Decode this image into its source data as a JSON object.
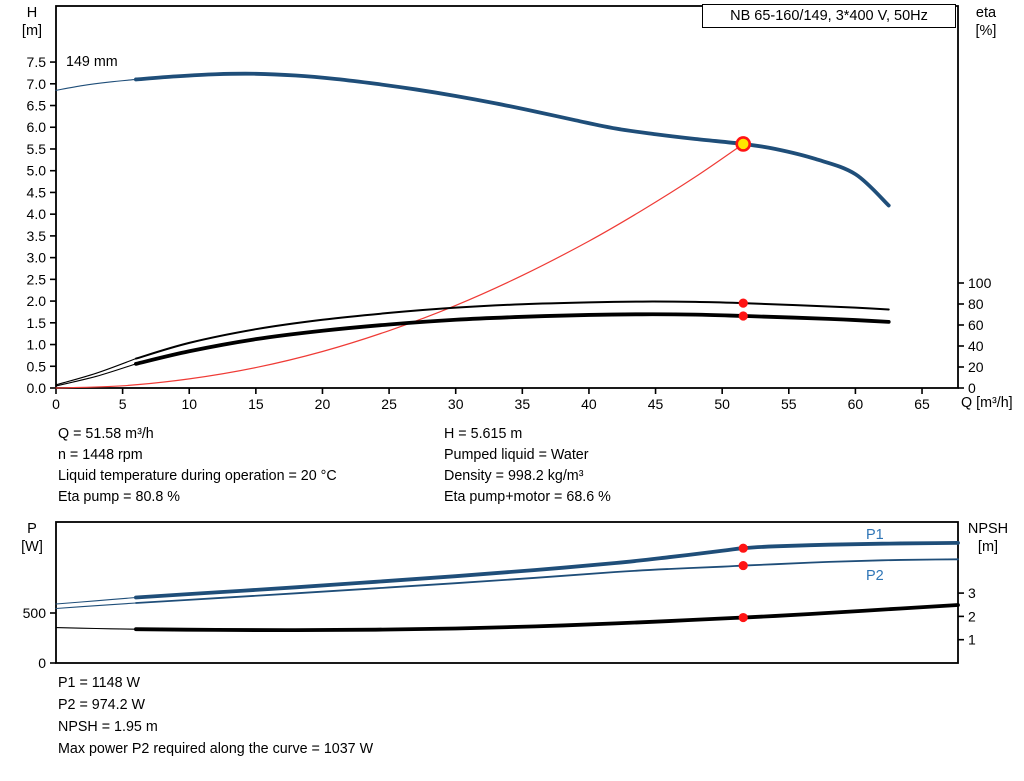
{
  "chart_data": [
    {
      "type": "line",
      "title": "NB 65-160/149, 3*400 V, 50Hz",
      "curve_label": "149 mm",
      "left_axis_title": [
        "H",
        "[m]"
      ],
      "right_axis_title": [
        "eta",
        "[%]"
      ],
      "x_axis_title": "Q [m³/h]",
      "axes": {
        "q": {
          "min": 0,
          "max": 67.7
        },
        "h": {
          "min": 0,
          "max": 8.79
        },
        "eta": {
          "min": 0,
          "max": 363.8
        }
      },
      "ticks": [
        {
          "side": "left",
          "axis": "h",
          "values": [
            0,
            0.5,
            1,
            1.5,
            2,
            2.5,
            3,
            3.5,
            4,
            4.5,
            5,
            5.5,
            6,
            6.5,
            7,
            7.5
          ],
          "labels": [
            "0.0",
            "0.5",
            "1.0",
            "1.5",
            "2.0",
            "2.5",
            "3.0",
            "3.5",
            "4.0",
            "4.5",
            "5.0",
            "5.5",
            "6.0",
            "6.5",
            "7.0",
            "7.5"
          ]
        },
        {
          "side": "right",
          "axis": "eta",
          "values": [
            0,
            20,
            40,
            60,
            80,
            100
          ],
          "labels": [
            "0",
            "20",
            "40",
            "60",
            "80",
            "100"
          ]
        },
        {
          "side": "bottom",
          "axis": "q",
          "values": [
            0,
            5,
            10,
            15,
            20,
            25,
            30,
            35,
            40,
            45,
            50,
            55,
            60,
            65
          ],
          "labels": [
            "0",
            "5",
            "10",
            "15",
            "20",
            "25",
            "30",
            "35",
            "40",
            "45",
            "50",
            "55",
            "60",
            "65"
          ]
        }
      ],
      "series": [
        {
          "name": "head-min-flow",
          "axis": "h",
          "color": "#1f4e79",
          "width": 1.1,
          "points": [
            [
              0,
              6.85
            ],
            [
              2,
              6.96
            ],
            [
              4,
              7.04
            ],
            [
              6,
              7.1
            ]
          ]
        },
        {
          "name": "head-149mm",
          "axis": "h",
          "color": "#1f4e79",
          "width": 3.8,
          "points": [
            [
              6,
              7.1
            ],
            [
              9,
              7.17
            ],
            [
              12,
              7.22
            ],
            [
              15,
              7.23
            ],
            [
              18,
              7.19
            ],
            [
              21,
              7.11
            ],
            [
              24,
              7.0
            ],
            [
              27,
              6.87
            ],
            [
              30,
              6.72
            ],
            [
              33,
              6.55
            ],
            [
              36,
              6.36
            ],
            [
              39,
              6.16
            ],
            [
              42,
              5.97
            ],
            [
              45,
              5.84
            ],
            [
              48,
              5.73
            ],
            [
              51.58,
              5.615
            ],
            [
              54,
              5.5
            ],
            [
              57,
              5.27
            ],
            [
              60,
              4.92
            ],
            [
              62.5,
              4.2
            ]
          ]
        },
        {
          "name": "system-curve",
          "axis": "h",
          "color": "#ef3b36",
          "width": 1.2,
          "points": [
            [
              0,
              0
            ],
            [
              5,
              0.05
            ],
            [
              10,
              0.21
            ],
            [
              15,
              0.47
            ],
            [
              20,
              0.84
            ],
            [
              25,
              1.32
            ],
            [
              30,
              1.9
            ],
            [
              35,
              2.59
            ],
            [
              40,
              3.38
            ],
            [
              44,
              4.09
            ],
            [
              48,
              4.86
            ],
            [
              51.58,
              5.615
            ]
          ]
        },
        {
          "name": "eta-pump-lead",
          "axis": "eta",
          "color": "#000000",
          "width": 1.1,
          "points": [
            [
              0,
              3
            ],
            [
              3,
              14
            ],
            [
              6,
              28
            ]
          ]
        },
        {
          "name": "eta-pump",
          "axis": "eta",
          "color": "#000000",
          "width": 2,
          "points": [
            [
              6,
              28
            ],
            [
              10,
              43
            ],
            [
              15,
              56
            ],
            [
              20,
              65
            ],
            [
              25,
              71.5
            ],
            [
              30,
              76.5
            ],
            [
              35,
              79.8
            ],
            [
              40,
              81.6
            ],
            [
              44,
              82.3
            ],
            [
              48,
              82.0
            ],
            [
              51.58,
              80.8
            ],
            [
              55,
              79.2
            ],
            [
              58,
              77.6
            ],
            [
              60,
              76.5
            ],
            [
              62.5,
              74.8
            ]
          ]
        },
        {
          "name": "eta-pump-motor-lead",
          "axis": "eta",
          "color": "#000000",
          "width": 1.1,
          "points": [
            [
              0,
              2
            ],
            [
              3,
              11
            ],
            [
              6,
              23
            ]
          ]
        },
        {
          "name": "eta-pump-motor",
          "axis": "eta",
          "color": "#000000",
          "width": 3.8,
          "points": [
            [
              6,
              23
            ],
            [
              10,
              35
            ],
            [
              15,
              46.5
            ],
            [
              20,
              54.5
            ],
            [
              25,
              60.5
            ],
            [
              30,
              65.0
            ],
            [
              35,
              67.8
            ],
            [
              40,
              69.6
            ],
            [
              44,
              70.2
            ],
            [
              48,
              69.9
            ],
            [
              51.58,
              68.6
            ],
            [
              55,
              67.2
            ],
            [
              58,
              65.8
            ],
            [
              60,
              64.7
            ],
            [
              62.5,
              63.0
            ]
          ]
        }
      ],
      "markers": [
        {
          "type": "dot",
          "axis": "eta",
          "q": 51.58,
          "v": 80.8,
          "r": 4.6,
          "fill": "#ff1414"
        },
        {
          "type": "dot",
          "axis": "eta",
          "q": 51.58,
          "v": 68.6,
          "r": 4.6,
          "fill": "#ff1414"
        },
        {
          "type": "duty",
          "axis": "h",
          "q": 51.58,
          "v": 5.615,
          "r": 6.5,
          "fill": "#ffe400",
          "stroke": "#ff1414",
          "sw": 2.6
        }
      ],
      "duty_point": {
        "q_m3h": 51.58,
        "h_m": 5.615,
        "eta_pump_pct": 80.8,
        "eta_pump_motor_pct": 68.6
      }
    },
    {
      "type": "line",
      "left_axis_title": [
        "P",
        "[W]"
      ],
      "right_axis_title": [
        "NPSH",
        "[m]"
      ],
      "series_labels": {
        "p1": "P1",
        "p2": "P2"
      },
      "axes": {
        "q": {
          "min": 0,
          "max": 67.7
        },
        "p": {
          "min": 0,
          "max": 1410
        },
        "npsh": {
          "min": 0,
          "max": 6.05
        }
      },
      "ticks": [
        {
          "side": "left",
          "axis": "p",
          "values": [
            0,
            500
          ],
          "labels": [
            "0",
            "500"
          ]
        },
        {
          "side": "right",
          "axis": "npsh",
          "values": [
            1,
            2,
            3
          ],
          "labels": [
            "1",
            "2",
            "3"
          ]
        }
      ],
      "series": [
        {
          "name": "p1-lead",
          "axis": "p",
          "color": "#1f4e79",
          "width": 1.1,
          "points": [
            [
              0,
              590
            ],
            [
              3,
              622
            ],
            [
              6,
              655
            ]
          ]
        },
        {
          "name": "p1",
          "axis": "p",
          "color": "#1f4e79",
          "width": 3.8,
          "points": [
            [
              6,
              655
            ],
            [
              12,
              706
            ],
            [
              18,
              757
            ],
            [
              24,
              812
            ],
            [
              30,
              868
            ],
            [
              36,
              930
            ],
            [
              42,
              1000
            ],
            [
              46,
              1058
            ],
            [
              50,
              1122
            ],
            [
              51.58,
              1148
            ],
            [
              54,
              1167
            ],
            [
              58,
              1183
            ],
            [
              62,
              1193
            ],
            [
              66,
              1199
            ],
            [
              67.7,
              1201
            ]
          ]
        },
        {
          "name": "p2-lead",
          "axis": "p",
          "color": "#1f4e79",
          "width": 1.1,
          "points": [
            [
              0,
              545
            ],
            [
              3,
              573
            ],
            [
              6,
              600
            ]
          ]
        },
        {
          "name": "p2",
          "axis": "p",
          "color": "#1f4e79",
          "width": 1.8,
          "points": [
            [
              6,
              600
            ],
            [
              12,
              648
            ],
            [
              18,
              697
            ],
            [
              24,
              747
            ],
            [
              30,
              798
            ],
            [
              36,
              852
            ],
            [
              42,
              910
            ],
            [
              46,
              940
            ],
            [
              50,
              963
            ],
            [
              51.58,
              974.2
            ],
            [
              54,
              988
            ],
            [
              58,
              1011
            ],
            [
              62,
              1027
            ],
            [
              66,
              1035
            ],
            [
              67.7,
              1037
            ]
          ]
        },
        {
          "name": "npsh-lead",
          "axis": "npsh",
          "color": "#000000",
          "width": 1.1,
          "points": [
            [
              0,
              1.52
            ],
            [
              3,
              1.48
            ],
            [
              6,
              1.45
            ]
          ]
        },
        {
          "name": "npsh",
          "axis": "npsh",
          "color": "#000000",
          "width": 3.8,
          "points": [
            [
              6,
              1.45
            ],
            [
              12,
              1.42
            ],
            [
              18,
              1.41
            ],
            [
              24,
              1.43
            ],
            [
              30,
              1.48
            ],
            [
              36,
              1.57
            ],
            [
              42,
              1.7
            ],
            [
              46,
              1.8
            ],
            [
              50,
              1.91
            ],
            [
              51.58,
              1.95
            ],
            [
              54,
              2.02
            ],
            [
              58,
              2.15
            ],
            [
              62,
              2.29
            ],
            [
              66,
              2.43
            ],
            [
              67.7,
              2.49
            ]
          ]
        }
      ],
      "markers": [
        {
          "type": "dot",
          "axis": "p",
          "q": 51.58,
          "v": 1148,
          "r": 4.6,
          "fill": "#ff1414"
        },
        {
          "type": "dot",
          "axis": "p",
          "q": 51.58,
          "v": 974.2,
          "r": 4.6,
          "fill": "#ff1414"
        },
        {
          "type": "dot",
          "axis": "npsh",
          "q": 51.58,
          "v": 1.95,
          "r": 4.6,
          "fill": "#ff1414"
        }
      ],
      "operating_point": {
        "q_m3h": 51.58,
        "p1_w": 1148,
        "p2_w": 974.2,
        "npsh_m": 1.95,
        "p2_max_w": 1037
      }
    }
  ],
  "info": {
    "left": [
      "Q = 51.58 m³/h",
      "n = 1448 rpm",
      "Liquid temperature during operation = 20 °C",
      "Eta pump = 80.8 %"
    ],
    "right": [
      "H = 5.615 m",
      "Pumped liquid = Water",
      "Density = 998.2 kg/m³",
      "Eta pump+motor = 68.6 %"
    ]
  },
  "results": [
    "P1 = 1148 W",
    "P2 = 974.2 W",
    "NPSH = 1.95 m",
    "Max power P2 required along the curve = 1037 W"
  ],
  "colors": {
    "curve_blue": "#1f4e79",
    "system_red": "#ef3b36",
    "dot_red": "#ff1414",
    "duty_fill": "#ffe400",
    "label_blue": "#2e75b6",
    "black": "#000000"
  }
}
